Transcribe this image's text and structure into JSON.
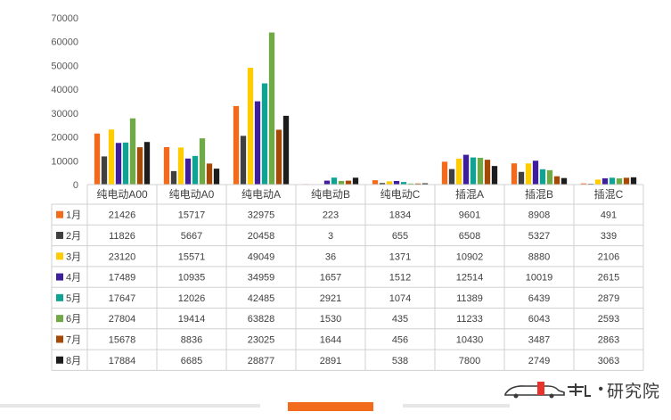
{
  "chart_data": {
    "type": "bar",
    "categories": [
      "纯电动A00",
      "纯电动A0",
      "纯电动A",
      "纯电动B",
      "纯电动C",
      "插混A",
      "插混B",
      "插混C"
    ],
    "y_ticks": [
      "0",
      "10000",
      "20000",
      "30000",
      "40000",
      "50000",
      "60000",
      "70000"
    ],
    "ylim": [
      0,
      70000
    ],
    "grid": false,
    "legend": "data-table-left",
    "series": [
      {
        "name": "1月",
        "color": "#f26a1b",
        "values": [
          21426,
          15717,
          32975,
          223,
          1834,
          9601,
          8908,
          491
        ]
      },
      {
        "name": "2月",
        "color": "#404040",
        "values": [
          11826,
          5667,
          20458,
          3,
          655,
          6508,
          5327,
          339
        ]
      },
      {
        "name": "3月",
        "color": "#ffcc00",
        "values": [
          23120,
          15571,
          49049,
          36,
          1371,
          10902,
          8880,
          2106
        ]
      },
      {
        "name": "4月",
        "color": "#3f1e9c",
        "values": [
          17489,
          10935,
          34959,
          1657,
          1512,
          12514,
          10019,
          2615
        ]
      },
      {
        "name": "5月",
        "color": "#10a394",
        "values": [
          17647,
          12026,
          42485,
          2921,
          1074,
          11389,
          6439,
          2879
        ]
      },
      {
        "name": "6月",
        "color": "#6faa47",
        "values": [
          27804,
          19414,
          63828,
          1530,
          435,
          11233,
          6043,
          2593
        ]
      },
      {
        "name": "7月",
        "color": "#a44a06",
        "values": [
          15678,
          8836,
          23025,
          1644,
          456,
          10430,
          3487,
          2863
        ]
      },
      {
        "name": "8月",
        "color": "#1c1c1c",
        "values": [
          17884,
          6685,
          28877,
          2891,
          538,
          7800,
          2749,
          3063
        ]
      }
    ]
  },
  "logo": {
    "text": "研究院",
    "dot": "•"
  }
}
